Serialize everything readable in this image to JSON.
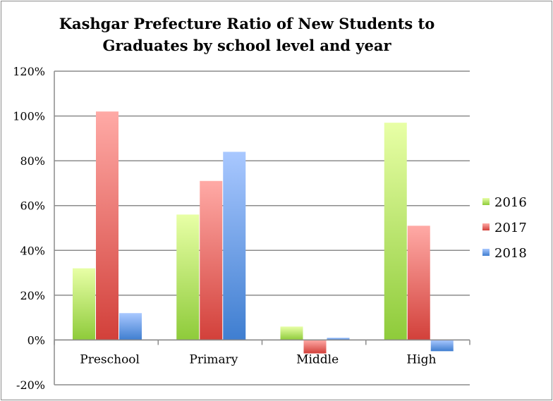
{
  "chart_data": {
    "type": "bar",
    "title_line1": "Kashgar Prefecture Ratio of New Students to",
    "title_line2": "Graduates by school level and year",
    "categories": [
      "Preschool",
      "Primary",
      "Middle",
      "High"
    ],
    "series": [
      {
        "name": "2016",
        "values": [
          32,
          56,
          6,
          97
        ]
      },
      {
        "name": "2017",
        "values": [
          102,
          71,
          -6,
          51
        ]
      },
      {
        "name": "2018",
        "values": [
          12,
          84,
          1,
          -5
        ]
      }
    ],
    "value_format": "percent",
    "ylim": [
      -20,
      120
    ],
    "yticks": [
      120,
      100,
      80,
      60,
      40,
      20,
      0,
      -20
    ],
    "ytick_labels": [
      "120%",
      "100%",
      "80%",
      "60%",
      "40%",
      "20%",
      "0%",
      "-20%"
    ],
    "grid": true,
    "legend_position": "right",
    "colors": {
      "2016": {
        "top": "#e8ffa6",
        "bottom": "#8ecb3a"
      },
      "2017": {
        "top": "#ffaaa6",
        "bottom": "#d2403a"
      },
      "2018": {
        "top": "#a9c8ff",
        "bottom": "#3f7ed0"
      }
    }
  }
}
